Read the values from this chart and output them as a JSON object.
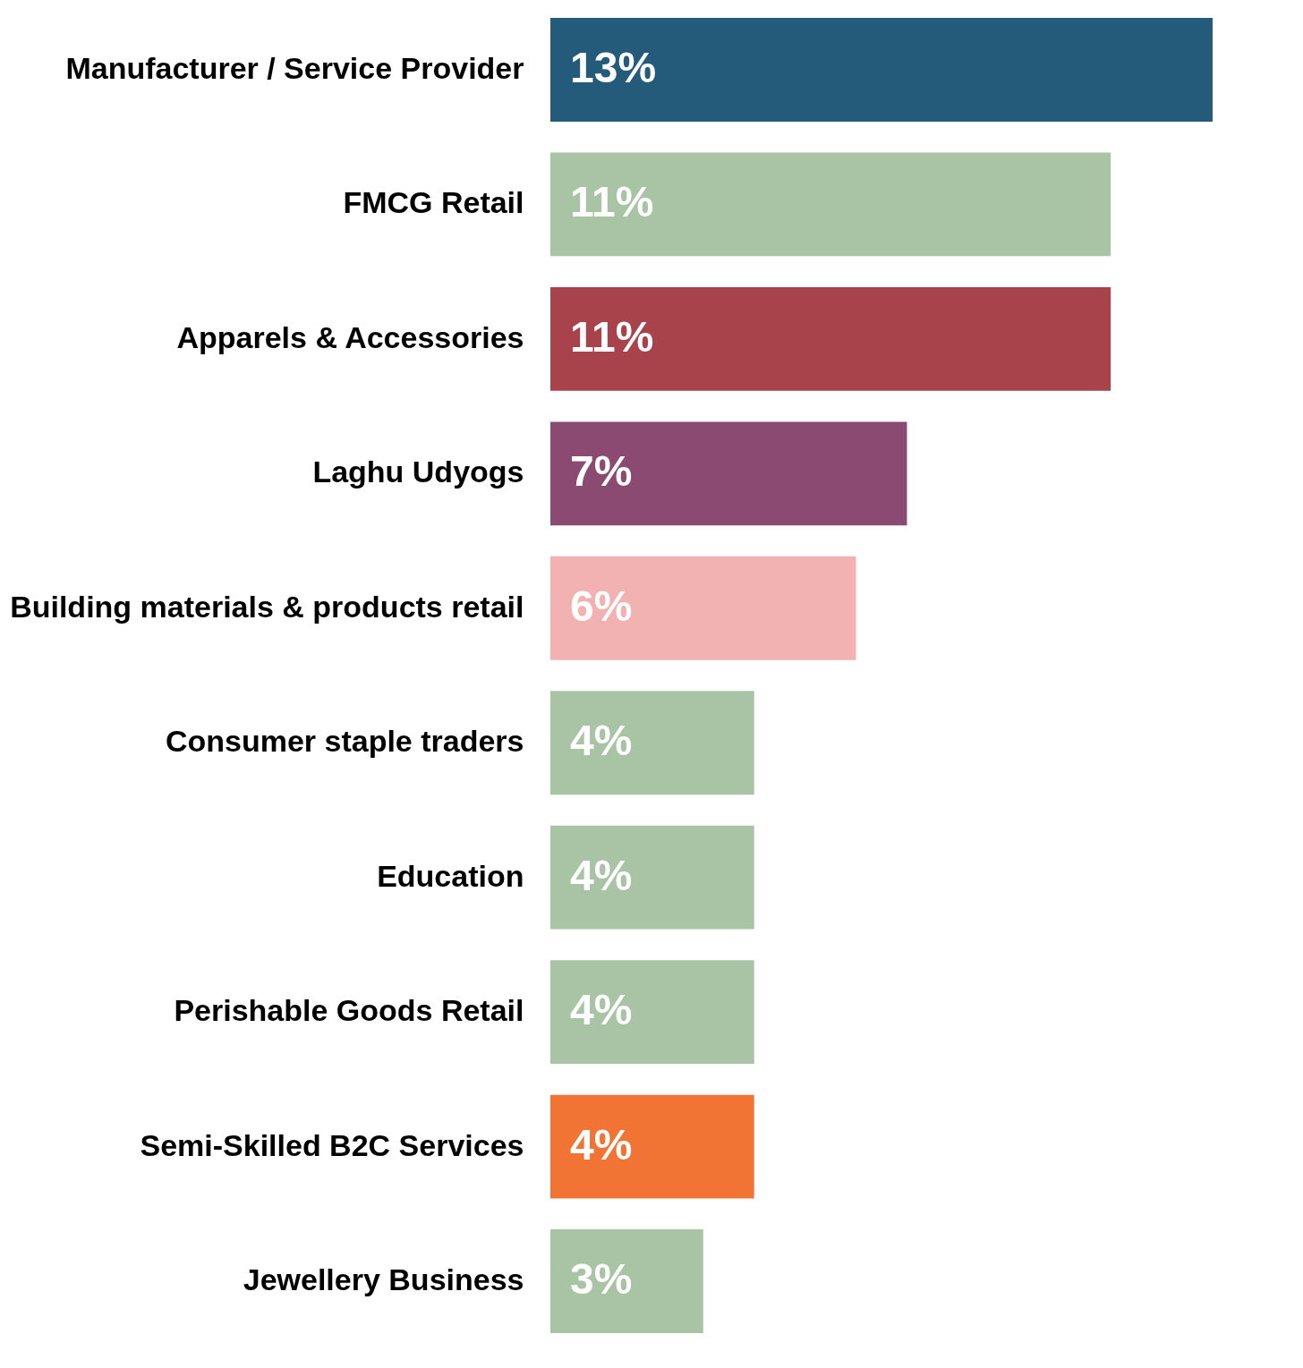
{
  "chart_data": {
    "type": "bar",
    "orientation": "horizontal",
    "categories": [
      "Manufacturer / Service Provider",
      "FMCG Retail",
      "Apparels & Accessories",
      "Laghu Udyogs",
      "Building materials & products retail",
      "Consumer staple traders",
      "Education",
      "Perishable Goods Retail",
      "Semi-Skilled B2C Services",
      "Jewellery Business"
    ],
    "values": [
      13,
      11,
      11,
      7,
      6,
      4,
      4,
      4,
      4,
      3
    ],
    "value_labels": [
      "13%",
      "11%",
      "11%",
      "7%",
      "6%",
      "4%",
      "4%",
      "4%",
      "4%",
      "3%"
    ],
    "colors": [
      "#245b7b",
      "#a9c4a5",
      "#a8424b",
      "#8a4a72",
      "#f2b2b1",
      "#a9c4a5",
      "#a9c4a5",
      "#a9c4a5",
      "#f27435",
      "#a9c4a5"
    ]
  }
}
